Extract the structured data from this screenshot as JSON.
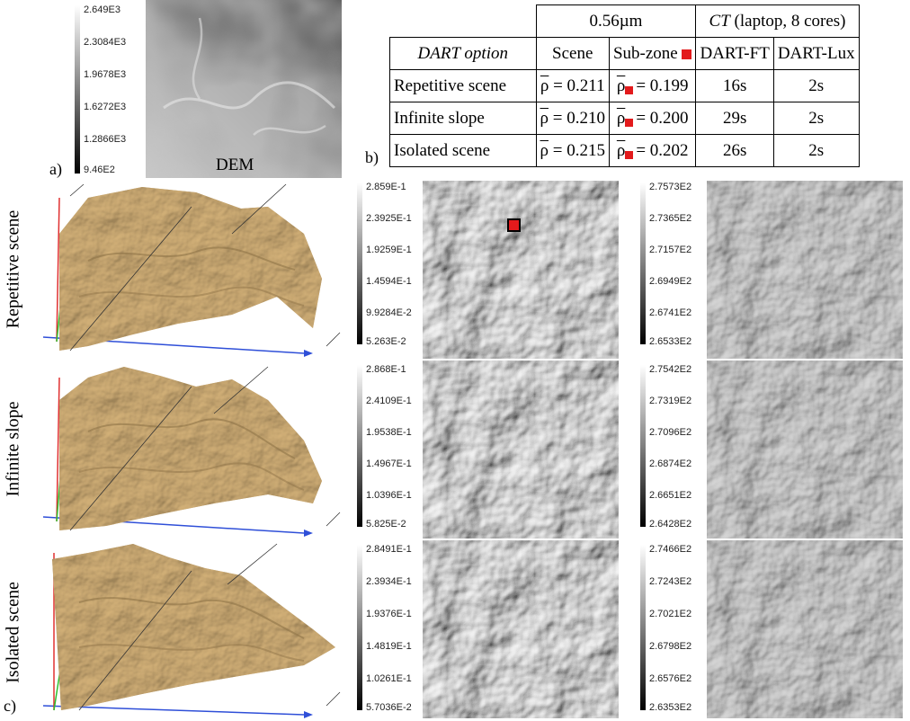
{
  "panel_a": {
    "letter": "a)",
    "image_label": "DEM",
    "colorbar": [
      "2.649E3",
      "2.3084E3",
      "1.9678E3",
      "1.6272E3",
      "1.2866E3",
      "9.46E2"
    ]
  },
  "panel_b": {
    "letter": "b)",
    "header_wavelength": "0.56µm",
    "header_ct_italic": "CT",
    "header_ct_rest": " (laptop, 8 cores)",
    "col_option": "DART option",
    "col_scene": "Scene",
    "col_subzone": "Sub-zone",
    "col_ft": "DART-FT",
    "col_lux": "DART-Lux",
    "rows": [
      {
        "option": "Repetitive scene",
        "scene": "= 0.211",
        "subzone": "= 0.199",
        "ft": "16s",
        "lux": "2s"
      },
      {
        "option": "Infinite slope",
        "scene": "= 0.210",
        "subzone": "= 0.200",
        "ft": "29s",
        "lux": "2s"
      },
      {
        "option": "Isolated scene",
        "scene": "= 0.215",
        "subzone": "= 0.202",
        "ft": "26s",
        "lux": "2s"
      }
    ],
    "rho_symbol": "ρ"
  },
  "panel_c": {
    "letter": "c)",
    "row_labels": [
      "Repetitive scene",
      "Infinite slope",
      "Isolated scene"
    ],
    "reflectance_colorbars": [
      [
        "2.859E-1",
        "2.3925E-1",
        "1.9259E-1",
        "1.4594E-1",
        "9.9284E-2",
        "5.263E-2"
      ],
      [
        "2.868E-1",
        "2.4109E-1",
        "1.9538E-1",
        "1.4967E-1",
        "1.0396E-1",
        "5.825E-2"
      ],
      [
        "2.8491E-1",
        "2.3934E-1",
        "1.9376E-1",
        "1.4819E-1",
        "1.0261E-1",
        "5.7036E-2"
      ]
    ],
    "temperature_colorbars": [
      [
        "2.7573E2",
        "2.7365E2",
        "2.7157E2",
        "2.6949E2",
        "2.6741E2",
        "2.6533E2"
      ],
      [
        "2.7542E2",
        "2.7319E2",
        "2.7096E2",
        "2.6874E2",
        "2.6651E2",
        "2.6428E2"
      ],
      [
        "2.7466E2",
        "2.7243E2",
        "2.7021E2",
        "2.6798E2",
        "2.6576E2",
        "2.6353E2"
      ]
    ],
    "colors": {
      "terrain": "#c9a770",
      "terrain_shadow": "#8f7447",
      "axis_x": "#2f4fd8",
      "axis_y": "#e03030",
      "axis_z": "#2fbf2f"
    }
  }
}
